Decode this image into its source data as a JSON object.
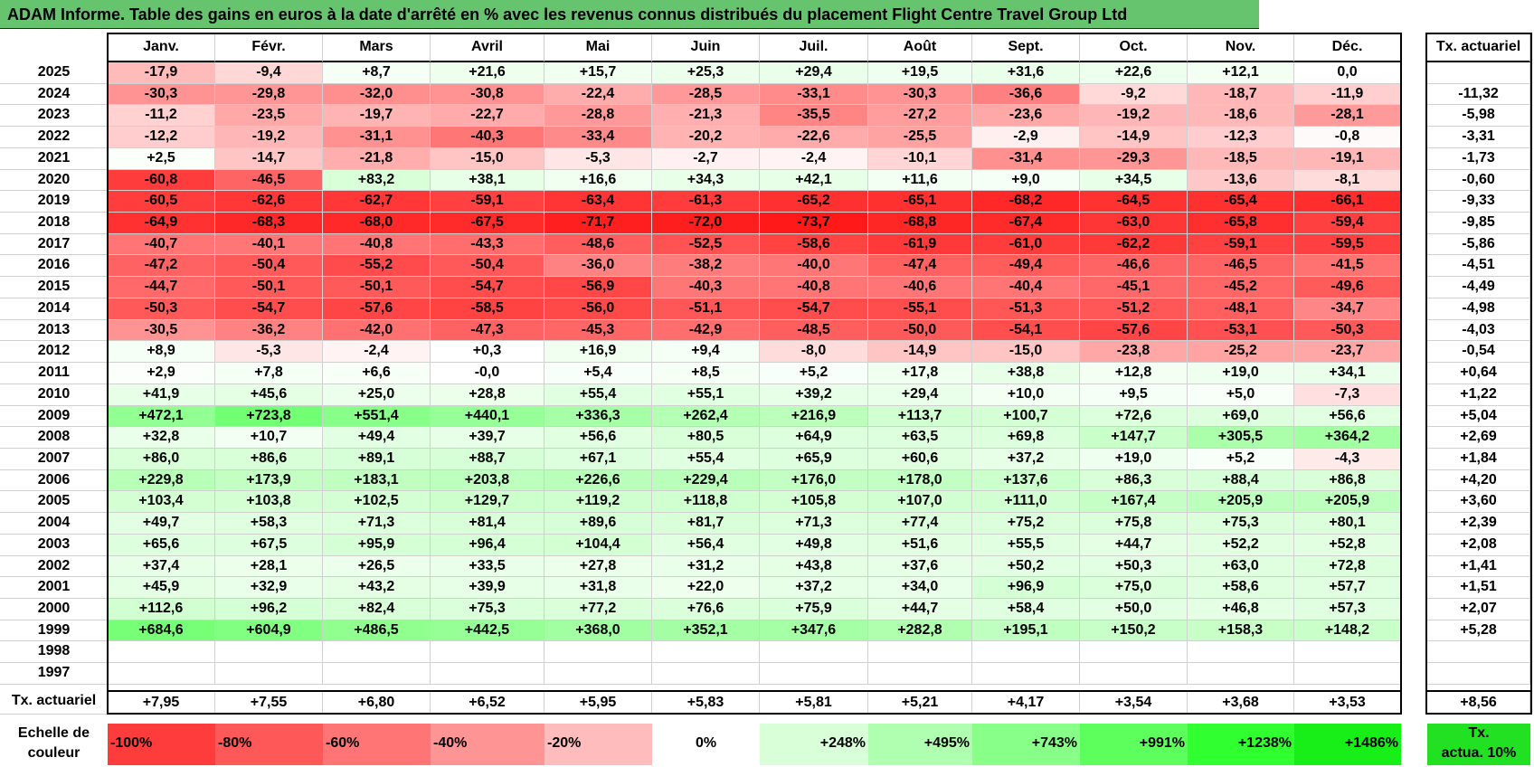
{
  "title": "ADAM Informe. Table des gains en euros à la date d'arrêté en % avec les revenus connus distribués du placement Flight Centre Travel Group Ltd",
  "months": [
    "Janv.",
    "Févr.",
    "Mars",
    "Avril",
    "Mai",
    "Juin",
    "Juil.",
    "Août",
    "Sept.",
    "Oct.",
    "Nov.",
    "Déc."
  ],
  "tx_header": "Tx. actuariel",
  "rows": [
    {
      "year": "2025",
      "values": [
        "-17,9",
        "-9,4",
        "+8,7",
        "+21,6",
        "+15,7",
        "+25,3",
        "+29,4",
        "+19,5",
        "+31,6",
        "+22,6",
        "+12,1",
        "0,0"
      ],
      "tx": ""
    },
    {
      "year": "2024",
      "values": [
        "-30,3",
        "-29,8",
        "-32,0",
        "-30,8",
        "-22,4",
        "-28,5",
        "-33,1",
        "-30,3",
        "-36,6",
        "-9,2",
        "-18,7",
        "-11,9"
      ],
      "tx": "-11,32"
    },
    {
      "year": "2023",
      "values": [
        "-11,2",
        "-23,5",
        "-19,7",
        "-22,7",
        "-28,8",
        "-21,3",
        "-35,5",
        "-27,2",
        "-23,6",
        "-19,2",
        "-18,6",
        "-28,1"
      ],
      "tx": "-5,98"
    },
    {
      "year": "2022",
      "values": [
        "-12,2",
        "-19,2",
        "-31,1",
        "-40,3",
        "-33,4",
        "-20,2",
        "-22,6",
        "-25,5",
        "-2,9",
        "-14,9",
        "-12,3",
        "-0,8"
      ],
      "tx": "-3,31"
    },
    {
      "year": "2021",
      "values": [
        "+2,5",
        "-14,7",
        "-21,8",
        "-15,0",
        "-5,3",
        "-2,7",
        "-2,4",
        "-10,1",
        "-31,4",
        "-29,3",
        "-18,5",
        "-19,1"
      ],
      "tx": "-1,73"
    },
    {
      "year": "2020",
      "values": [
        "-60,8",
        "-46,5",
        "+83,2",
        "+38,1",
        "+16,6",
        "+34,3",
        "+42,1",
        "+11,6",
        "+9,0",
        "+34,5",
        "-13,6",
        "-8,1"
      ],
      "tx": "-0,60"
    },
    {
      "year": "2019",
      "values": [
        "-60,5",
        "-62,6",
        "-62,7",
        "-59,1",
        "-63,4",
        "-61,3",
        "-65,2",
        "-65,1",
        "-68,2",
        "-64,5",
        "-65,4",
        "-66,1"
      ],
      "tx": "-9,33"
    },
    {
      "year": "2018",
      "values": [
        "-64,9",
        "-68,3",
        "-68,0",
        "-67,5",
        "-71,7",
        "-72,0",
        "-73,7",
        "-68,8",
        "-67,4",
        "-63,0",
        "-65,8",
        "-59,4"
      ],
      "tx": "-9,85"
    },
    {
      "year": "2017",
      "values": [
        "-40,7",
        "-40,1",
        "-40,8",
        "-43,3",
        "-48,6",
        "-52,5",
        "-58,6",
        "-61,9",
        "-61,0",
        "-62,2",
        "-59,1",
        "-59,5"
      ],
      "tx": "-5,86"
    },
    {
      "year": "2016",
      "values": [
        "-47,2",
        "-50,4",
        "-55,2",
        "-50,4",
        "-36,0",
        "-38,2",
        "-40,0",
        "-47,4",
        "-49,4",
        "-46,6",
        "-46,5",
        "-41,5"
      ],
      "tx": "-4,51"
    },
    {
      "year": "2015",
      "values": [
        "-44,7",
        "-50,1",
        "-50,1",
        "-54,7",
        "-56,9",
        "-40,3",
        "-40,8",
        "-40,6",
        "-40,4",
        "-45,1",
        "-45,2",
        "-49,6"
      ],
      "tx": "-4,49"
    },
    {
      "year": "2014",
      "values": [
        "-50,3",
        "-54,7",
        "-57,6",
        "-58,5",
        "-56,0",
        "-51,1",
        "-54,7",
        "-55,1",
        "-51,3",
        "-51,2",
        "-48,1",
        "-34,7"
      ],
      "tx": "-4,98"
    },
    {
      "year": "2013",
      "values": [
        "-30,5",
        "-36,2",
        "-42,0",
        "-47,3",
        "-45,3",
        "-42,9",
        "-48,5",
        "-50,0",
        "-54,1",
        "-57,6",
        "-53,1",
        "-50,3"
      ],
      "tx": "-4,03"
    },
    {
      "year": "2012",
      "values": [
        "+8,9",
        "-5,3",
        "-2,4",
        "+0,3",
        "+16,9",
        "+9,4",
        "-8,0",
        "-14,9",
        "-15,0",
        "-23,8",
        "-25,2",
        "-23,7"
      ],
      "tx": "-0,54"
    },
    {
      "year": "2011",
      "values": [
        "+2,9",
        "+7,8",
        "+6,6",
        "-0,0",
        "+5,4",
        "+8,5",
        "+5,2",
        "+17,8",
        "+38,8",
        "+12,8",
        "+19,0",
        "+34,1"
      ],
      "tx": "+0,64"
    },
    {
      "year": "2010",
      "values": [
        "+41,9",
        "+45,6",
        "+25,0",
        "+28,8",
        "+55,4",
        "+55,1",
        "+39,2",
        "+29,4",
        "+10,0",
        "+9,5",
        "+5,0",
        "-7,3"
      ],
      "tx": "+1,22"
    },
    {
      "year": "2009",
      "values": [
        "+472,1",
        "+723,8",
        "+551,4",
        "+440,1",
        "+336,3",
        "+262,4",
        "+216,9",
        "+113,7",
        "+100,7",
        "+72,6",
        "+69,0",
        "+56,6"
      ],
      "tx": "+5,04"
    },
    {
      "year": "2008",
      "values": [
        "+32,8",
        "+10,7",
        "+49,4",
        "+39,7",
        "+56,6",
        "+80,5",
        "+64,9",
        "+63,5",
        "+69,8",
        "+147,7",
        "+305,5",
        "+364,2"
      ],
      "tx": "+2,69"
    },
    {
      "year": "2007",
      "values": [
        "+86,0",
        "+86,6",
        "+89,1",
        "+88,7",
        "+67,1",
        "+55,4",
        "+65,9",
        "+60,6",
        "+37,2",
        "+19,0",
        "+5,2",
        "-4,3"
      ],
      "tx": "+1,84"
    },
    {
      "year": "2006",
      "values": [
        "+229,8",
        "+173,9",
        "+183,1",
        "+203,8",
        "+226,6",
        "+229,4",
        "+176,0",
        "+178,0",
        "+137,6",
        "+86,3",
        "+88,4",
        "+86,8"
      ],
      "tx": "+4,20"
    },
    {
      "year": "2005",
      "values": [
        "+103,4",
        "+103,8",
        "+102,5",
        "+129,7",
        "+119,2",
        "+118,8",
        "+105,8",
        "+107,0",
        "+111,0",
        "+167,4",
        "+205,9",
        "+205,9"
      ],
      "tx": "+3,60"
    },
    {
      "year": "2004",
      "values": [
        "+49,7",
        "+58,3",
        "+71,3",
        "+81,4",
        "+89,6",
        "+81,7",
        "+71,3",
        "+77,4",
        "+75,2",
        "+75,8",
        "+75,3",
        "+80,1"
      ],
      "tx": "+2,39"
    },
    {
      "year": "2003",
      "values": [
        "+65,6",
        "+67,5",
        "+95,9",
        "+96,4",
        "+104,4",
        "+56,4",
        "+49,8",
        "+51,6",
        "+55,5",
        "+44,7",
        "+52,2",
        "+52,8"
      ],
      "tx": "+2,08"
    },
    {
      "year": "2002",
      "values": [
        "+37,4",
        "+28,1",
        "+26,5",
        "+33,5",
        "+27,8",
        "+31,2",
        "+43,8",
        "+37,6",
        "+50,2",
        "+50,3",
        "+63,0",
        "+72,8"
      ],
      "tx": "+1,41"
    },
    {
      "year": "2001",
      "values": [
        "+45,9",
        "+32,9",
        "+43,2",
        "+39,9",
        "+31,8",
        "+22,0",
        "+37,2",
        "+34,0",
        "+96,9",
        "+75,0",
        "+58,6",
        "+57,7"
      ],
      "tx": "+1,51"
    },
    {
      "year": "2000",
      "values": [
        "+112,6",
        "+96,2",
        "+82,4",
        "+75,3",
        "+77,2",
        "+76,6",
        "+75,9",
        "+44,7",
        "+58,4",
        "+50,0",
        "+46,8",
        "+57,3"
      ],
      "tx": "+2,07"
    },
    {
      "year": "1999",
      "values": [
        "+684,6",
        "+604,9",
        "+486,5",
        "+442,5",
        "+368,0",
        "+352,1",
        "+347,6",
        "+282,8",
        "+195,1",
        "+150,2",
        "+158,3",
        "+148,2"
      ],
      "tx": "+5,28"
    },
    {
      "year": "1998",
      "values": [
        "",
        "",
        "",
        "",
        "",
        "",
        "",
        "",
        "",
        "",
        "",
        ""
      ],
      "tx": ""
    },
    {
      "year": "1997",
      "values": [
        "",
        "",
        "",
        "",
        "",
        "",
        "",
        "",
        "",
        "",
        "",
        ""
      ],
      "tx": ""
    }
  ],
  "tx_row": {
    "label": "Tx. actuariel",
    "values": [
      "+7,95",
      "+7,55",
      "+6,80",
      "+6,52",
      "+5,95",
      "+5,83",
      "+5,81",
      "+5,21",
      "+4,17",
      "+3,54",
      "+3,68",
      "+3,53"
    ],
    "total": "+8,56"
  },
  "scale": {
    "label_line1": "Echelle de",
    "label_line2": "couleur",
    "items": [
      "-100%",
      "-80%",
      "-60%",
      "-40%",
      "-20%",
      "0%",
      "+248%",
      "+495%",
      "+743%",
      "+991%",
      "+1238%",
      "+1486%"
    ],
    "colors": [
      "#ff3c3c",
      "#ff5858",
      "#ff7474",
      "#ff9494",
      "#ffbcbc",
      "#ffffff",
      "#d8ffd8",
      "#b0ffb0",
      "#88ff88",
      "#5cff5c",
      "#30ff30",
      "#18ee18"
    ],
    "legend_line1": "Tx.",
    "legend_line2": "actua. 10%",
    "legend_color": "#22e022"
  },
  "colors": {
    "title_bg": "#66c36e",
    "neg": "#ff2222",
    "pos": "#44dd44"
  }
}
